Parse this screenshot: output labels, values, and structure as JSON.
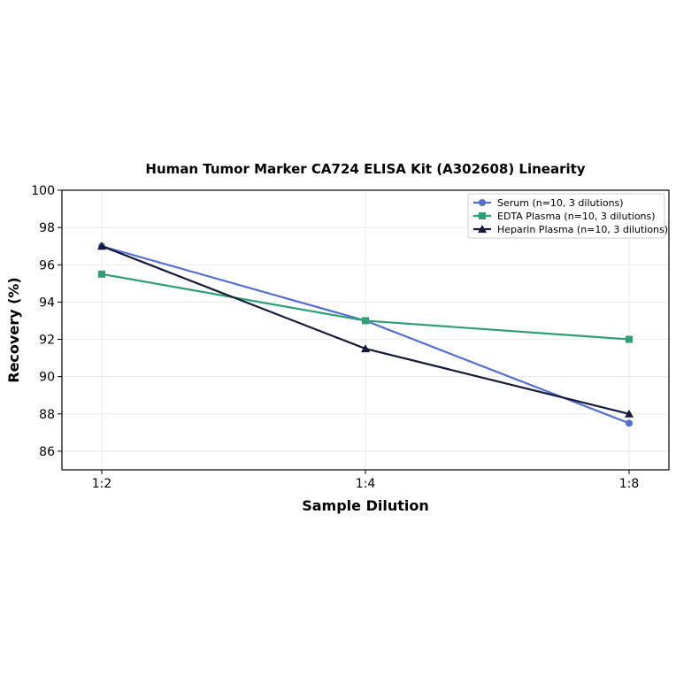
{
  "chart_data": {
    "type": "line",
    "title": "Human Tumor Marker CA724 ELISA Kit (A302608) Linearity",
    "xlabel": "Sample Dilution",
    "ylabel": "Recovery (%)",
    "categories": [
      "1:2",
      "1:4",
      "1:8"
    ],
    "ylim": [
      85,
      100
    ],
    "yticks": [
      86,
      88,
      90,
      92,
      94,
      96,
      98,
      100
    ],
    "grid": true,
    "legend_position": "top-right",
    "series": [
      {
        "name": "Serum (n=10, 3 dilutions)",
        "values": [
          97,
          93,
          87.5
        ],
        "color": "#5470d0",
        "marker": "circle"
      },
      {
        "name": "EDTA Plasma (n=10, 3 dilutions)",
        "values": [
          95.5,
          93,
          92
        ],
        "color": "#2e9e74",
        "marker": "square"
      },
      {
        "name": "Heparin Plasma (n=10, 3 dilutions)",
        "values": [
          97,
          91.5,
          88
        ],
        "color": "#141a3a",
        "marker": "triangle"
      }
    ]
  }
}
